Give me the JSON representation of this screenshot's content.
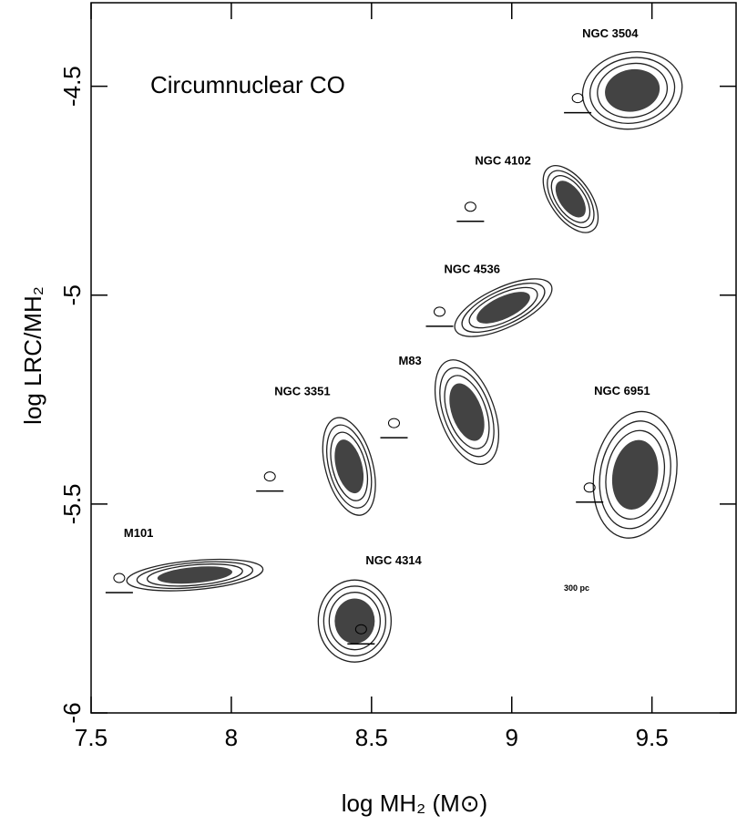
{
  "chart_data": {
    "type": "scatter",
    "title": "Circumnuclear CO",
    "x_label": "log MH₂ (M⊙)",
    "y_label": "log LRC/MH₂",
    "labels": [
      "NGC 3504",
      "NGC 4102",
      "NGC 4536",
      "M83",
      "NGC 3351",
      "NGC 6951",
      "M101",
      "NGC 4314"
    ],
    "x": [
      9.43,
      9.21,
      8.97,
      8.84,
      8.42,
      9.44,
      7.87,
      8.44
    ],
    "y": [
      -4.51,
      -4.77,
      -5.03,
      -5.28,
      -5.41,
      -5.43,
      -5.67,
      -5.78
    ],
    "annotation": "300 pc",
    "color": "#222222",
    "xlim": [
      7.5,
      9.8
    ],
    "ylim": [
      -6,
      -4.3
    ],
    "xticks": [
      7.5,
      8,
      8.5,
      9,
      9.5
    ],
    "yticks": [
      -6,
      -5.5,
      -5,
      -4.5
    ]
  }
}
